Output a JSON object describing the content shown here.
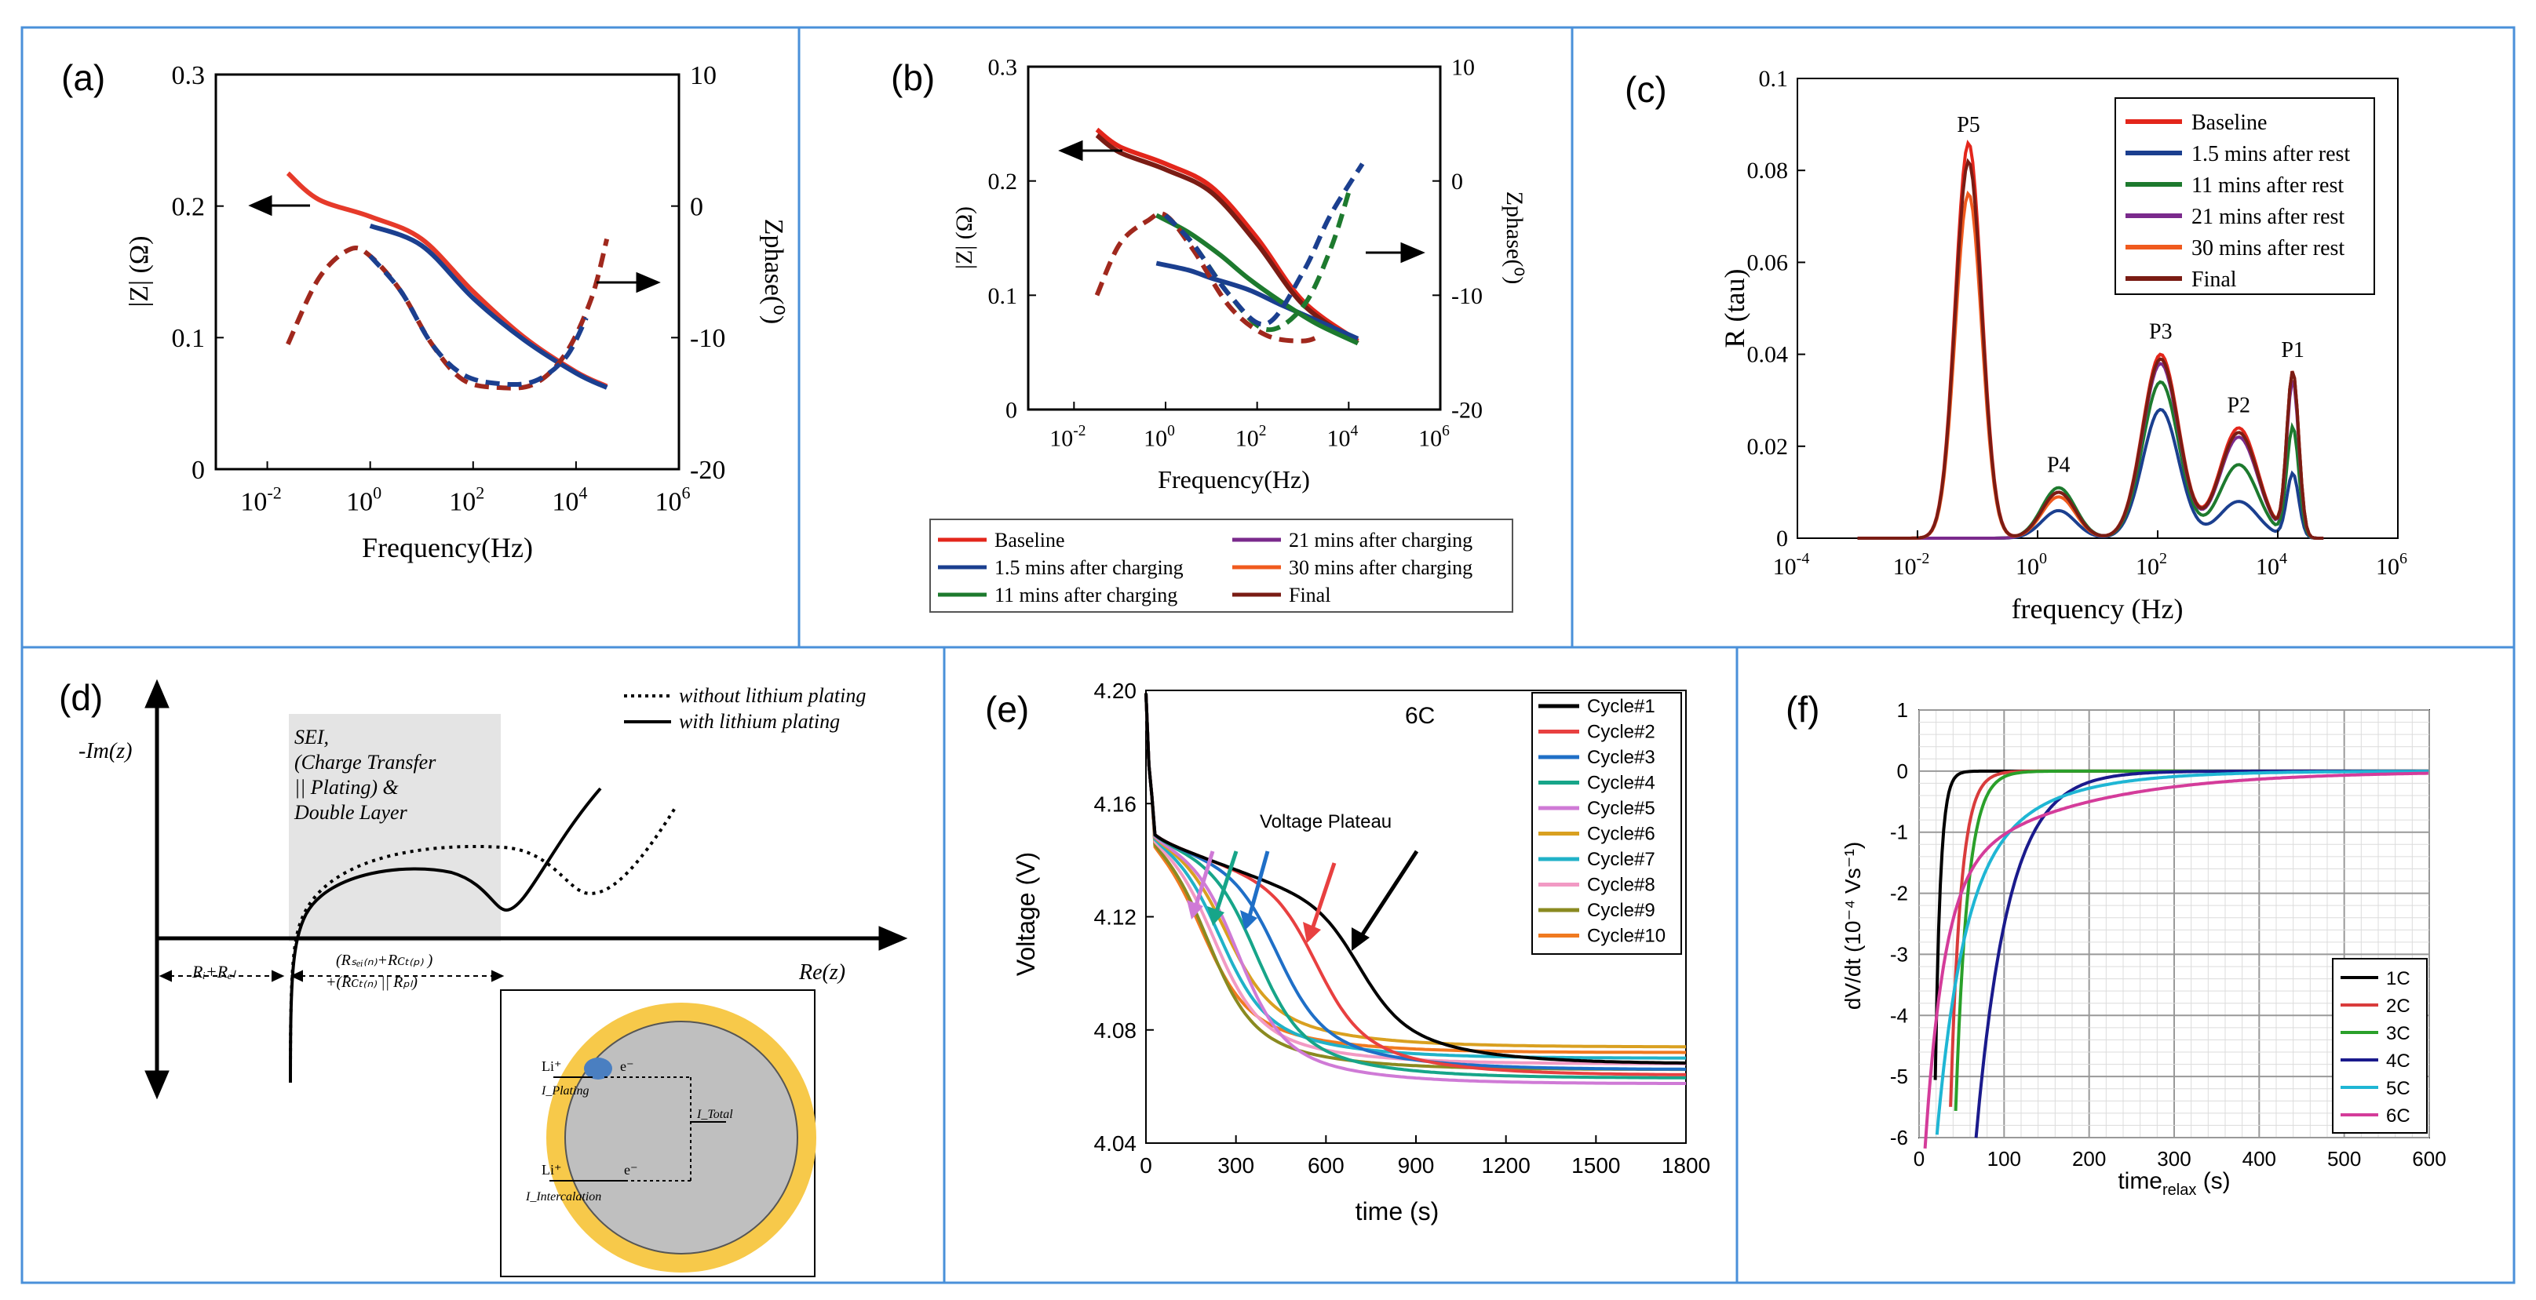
{
  "chart_data": [
    {
      "panel": "(a)",
      "type": "line",
      "xlabel": "Frequency(Hz)",
      "ylabel_left": "|Z| (Ω)",
      "ylabel_right": "Zphase(⁰)",
      "xlim_log10": [
        -3,
        6
      ],
      "ylim_left": [
        0,
        0.3
      ],
      "ylim_right": [
        -20,
        10
      ],
      "xticks": [
        "10",
        "10",
        "10",
        "10",
        "10"
      ],
      "xtick_exps": [
        "-2",
        "0",
        "2",
        "4",
        "6"
      ],
      "yticks_left": [
        "0",
        "0.1",
        "0.2",
        "0.3"
      ],
      "yticks_right": [
        "-20",
        "-10",
        "0",
        "10"
      ],
      "series": [
        {
          "name": "|Z| red",
          "color": "#e63a2a",
          "axis": "left",
          "style": "solid",
          "logx": [
            -1.6,
            -1,
            0,
            1,
            2,
            3,
            4,
            4.6
          ],
          "y": [
            0.225,
            0.205,
            0.192,
            0.175,
            0.135,
            0.1,
            0.074,
            0.063
          ]
        },
        {
          "name": "|Z| blue",
          "color": "#1b3f8f",
          "axis": "left",
          "style": "solid",
          "logx": [
            0,
            1,
            2,
            3,
            4,
            4.6
          ],
          "y": [
            0.185,
            0.17,
            0.13,
            0.098,
            0.073,
            0.062
          ]
        },
        {
          "name": "phase red",
          "color": "#a0281d",
          "axis": "right",
          "style": "dash",
          "logx": [
            -1.6,
            -1,
            -0.4,
            0,
            0.6,
            1.2,
            1.8,
            2.5,
            3.2,
            3.8,
            4.3,
            4.6
          ],
          "y": [
            -10.5,
            -5.5,
            -3.3,
            -3.8,
            -6.5,
            -10.5,
            -13.2,
            -13.8,
            -13.5,
            -11.2,
            -7,
            -2.5
          ]
        },
        {
          "name": "phase blue",
          "color": "#1b3f8f",
          "axis": "right",
          "style": "dash",
          "logx": [
            0,
            0.6,
            1.2,
            1.8,
            2.5,
            3.2,
            3.8,
            4.2
          ],
          "y": [
            -3.8,
            -6.5,
            -10.5,
            -12.8,
            -13.5,
            -13.3,
            -11.5,
            -8.5
          ]
        }
      ]
    },
    {
      "panel": "(b)",
      "type": "line",
      "xlabel": "Frequency(Hz)",
      "ylabel_left": "|Z| (Ω)",
      "ylabel_right": "Zphase(⁰)",
      "xlim_log10": [
        -3,
        6
      ],
      "ylim_left": [
        0,
        0.3
      ],
      "ylim_right": [
        -20,
        10
      ],
      "xticks": [
        "10",
        "10",
        "10",
        "10",
        "10"
      ],
      "xtick_exps": [
        "-2",
        "0",
        "2",
        "4",
        "6"
      ],
      "yticks_left": [
        "0",
        "0.1",
        "0.2",
        "0.3"
      ],
      "yticks_right": [
        "-20",
        "-10",
        "0",
        "10"
      ],
      "legend": [
        "Baseline",
        "1.5 mins after charging",
        "11 mins after charging",
        "21 mins after charging",
        "30 mins after charging",
        "Final"
      ],
      "legend_colors": [
        "#e3261b",
        "#1b3f8f",
        "#1d7a2e",
        "#7a2a8c",
        "#f05a1e",
        "#7a1c14"
      ],
      "series": [
        {
          "name": "Baseline",
          "color": "#e3261b",
          "axis": "left",
          "style": "solid",
          "logx": [
            -1.5,
            -1,
            0,
            1,
            2,
            3,
            4.2
          ],
          "y": [
            0.245,
            0.23,
            0.215,
            0.195,
            0.15,
            0.095,
            0.06
          ]
        },
        {
          "name": "Final",
          "color": "#7a1c14",
          "axis": "left",
          "style": "solid",
          "logx": [
            -1.5,
            -1,
            0,
            1,
            2,
            3,
            4.2
          ],
          "y": [
            0.24,
            0.225,
            0.21,
            0.19,
            0.145,
            0.092,
            0.058
          ]
        },
        {
          "name": "1.5 mins after charging",
          "color": "#1b3f8f",
          "axis": "left",
          "style": "solid",
          "logx": [
            -0.2,
            0.5,
            1,
            1.8,
            2.5,
            3.3,
            4.2
          ],
          "y": [
            0.128,
            0.122,
            0.115,
            0.105,
            0.092,
            0.078,
            0.062
          ]
        },
        {
          "name": "11 mins after charging",
          "color": "#1d7a2e",
          "axis": "left",
          "style": "solid",
          "logx": [
            -0.2,
            0.5,
            1.2,
            1.8,
            2.5,
            3.3,
            4.2
          ],
          "y": [
            0.17,
            0.155,
            0.135,
            0.115,
            0.095,
            0.075,
            0.058
          ]
        },
        {
          "name": "phase red",
          "color": "#a0281d",
          "axis": "right",
          "style": "dash",
          "logx": [
            -1.5,
            -1,
            -0.4,
            0,
            0.6,
            1.4,
            2.2,
            3,
            3.4
          ],
          "y": [
            -10,
            -5.5,
            -3.5,
            -3,
            -6,
            -11,
            -13.5,
            -14,
            -13.5
          ]
        },
        {
          "name": "phase green",
          "color": "#1d7a2e",
          "axis": "right",
          "style": "dash",
          "logx": [
            0,
            0.6,
            1.4,
            2.2,
            3,
            3.6,
            4
          ],
          "y": [
            -3,
            -5.5,
            -10,
            -13,
            -11,
            -6,
            -1
          ]
        },
        {
          "name": "phase blue",
          "color": "#1b3f8f",
          "axis": "right",
          "style": "dash",
          "logx": [
            0,
            0.6,
            1.4,
            2.2,
            3,
            3.6,
            4.3
          ],
          "y": [
            -3,
            -5.5,
            -10,
            -12.5,
            -8,
            -3,
            1.5
          ]
        }
      ]
    },
    {
      "panel": "(c)",
      "type": "line",
      "xlabel": "frequency (Hz)",
      "ylabel": "R (tau)",
      "xlim_log10": [
        -4,
        6
      ],
      "ylim": [
        0,
        0.1
      ],
      "xticks": [
        "10",
        "10",
        "10",
        "10",
        "10",
        "10"
      ],
      "xtick_exps": [
        "-4",
        "-2",
        "0",
        "2",
        "4",
        "6"
      ],
      "yticks": [
        "0",
        "0.02",
        "0.04",
        "0.06",
        "0.08",
        "0.1"
      ],
      "peaks": [
        "P5",
        "P4",
        "P3",
        "P2",
        "P1"
      ],
      "legend": [
        "Baseline",
        "1.5 mins after rest",
        "11 mins after rest",
        "21 mins after rest",
        "30 mins after rest",
        "Final"
      ],
      "legend_colors": [
        "#e3261b",
        "#1b3f8f",
        "#1d7a2e",
        "#7a2a8c",
        "#f05a1e",
        "#7a1c14"
      ],
      "series_peak_heights": {
        "Baseline": [
          0.086,
          0.01,
          0.04,
          0.024,
          0.036
        ],
        "1.5 mins after rest": [
          0.0,
          0.006,
          0.028,
          0.008,
          0.014
        ],
        "11 mins after rest": [
          0.0,
          0.011,
          0.034,
          0.016,
          0.024
        ],
        "21 mins after rest": [
          0.0,
          0.01,
          0.038,
          0.022,
          0.034
        ],
        "30 mins after rest": [
          0.075,
          0.009,
          0.039,
          0.023,
          0.036
        ],
        "Final": [
          0.082,
          0.01,
          0.039,
          0.023,
          0.036
        ]
      }
    },
    {
      "panel": "(d)",
      "type": "diagram",
      "ylabel": "-Im(z)",
      "xlabel": "Re(z)",
      "legend": [
        "without lithium plating",
        "with lithium plating"
      ],
      "box_text": [
        "SEI,",
        "(Charge Transfer",
        "|| Plating) &",
        "Double Layer"
      ],
      "rs_label": "Rᵢ+Rₑₗ",
      "bracket_label_1": "(Rₛₑᵢ₍ₙ₎+Rᴄₜ₍ₚ₎ )",
      "bracket_label_2": "+(Rᴄₜ₍ₙ₎ || Rₚₗ)",
      "inset_labels": [
        "Li⁺",
        "e⁻",
        "I_Plating",
        "I_Total",
        "Li⁺",
        "e⁻",
        "I_Intercalation"
      ]
    },
    {
      "panel": "(e)",
      "type": "line",
      "title": "6C",
      "xlabel": "time (s)",
      "ylabel": "Voltage (V)",
      "xlim": [
        0,
        1800
      ],
      "ylim": [
        4.04,
        4.2
      ],
      "xticks": [
        "0",
        "300",
        "600",
        "900",
        "1200",
        "1500",
        "1800"
      ],
      "yticks": [
        "4.04",
        "4.08",
        "4.12",
        "4.16",
        "4.20"
      ],
      "annotation": "Voltage Plateau",
      "legend": [
        "Cycle#1",
        "Cycle#2",
        "Cycle#3",
        "Cycle#4",
        "Cycle#5",
        "Cycle#6",
        "Cycle#7",
        "Cycle#8",
        "Cycle#9",
        "Cycle#10"
      ],
      "legend_colors": [
        "#000000",
        "#e84040",
        "#1f6fc7",
        "#17a589",
        "#cf7ad6",
        "#d9a020",
        "#20b2c8",
        "#f29ac4",
        "#8a8a20",
        "#f07a20"
      ],
      "knee_times": [
        700,
        560,
        430,
        360,
        300,
        260,
        240,
        220,
        200,
        180
      ]
    },
    {
      "panel": "(f)",
      "type": "line",
      "xlabel": "time",
      "xlabel_sub": "relax",
      "xlabel_unit": " (s)",
      "ylabel": "dV/dt (10⁻⁴ Vs⁻¹)",
      "xlim": [
        0,
        600
      ],
      "ylim": [
        -6,
        1
      ],
      "xticks": [
        "0",
        "100",
        "200",
        "300",
        "400",
        "500",
        "600"
      ],
      "yticks": [
        "1",
        "0",
        "-1",
        "-2",
        "-3",
        "-4",
        "-5",
        "-6"
      ],
      "legend": [
        "1C",
        "2C",
        "3C",
        "4C",
        "5C",
        "6C"
      ],
      "legend_colors": [
        "#000000",
        "#d93c3c",
        "#2aa02a",
        "#1a1a8c",
        "#1fb6d4",
        "#d43c9a"
      ],
      "time_constants": [
        6,
        12,
        14,
        38,
        90,
        70
      ]
    }
  ],
  "panel_labels": [
    "(a)",
    "(b)",
    "(c)",
    "(d)",
    "(e)",
    "(f)"
  ]
}
